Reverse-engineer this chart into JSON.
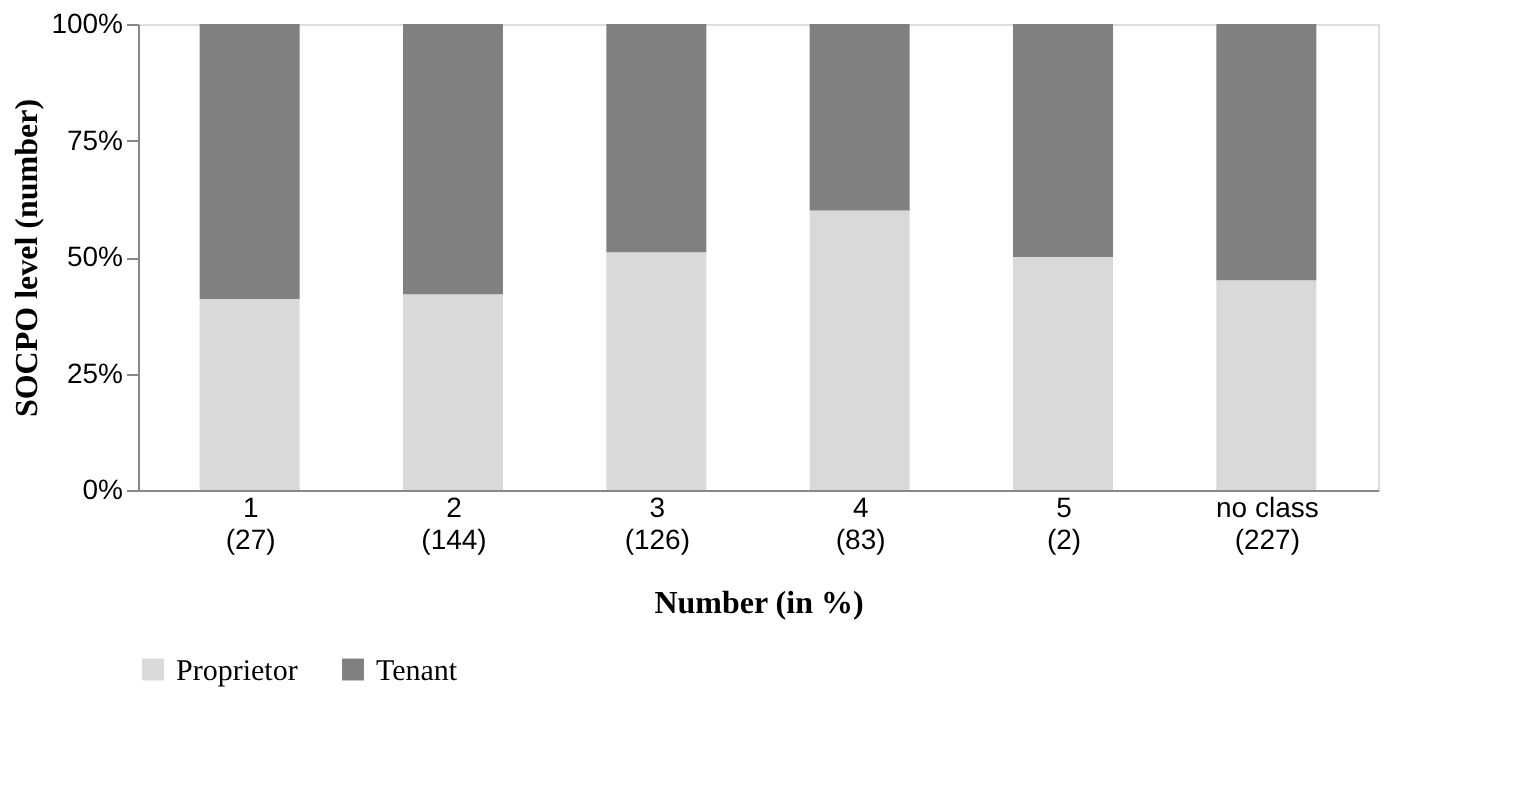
{
  "chart_data": {
    "type": "bar",
    "stacked": true,
    "xlabel": "Number (in %)",
    "ylabel": "SOCPO level (number)",
    "categories": [
      "1\n(27)",
      "2\n(144)",
      "3\n(126)",
      "4\n(83)",
      "5\n(2)",
      "no class\n(227)"
    ],
    "series": [
      {
        "name": "Proprietor",
        "color": "#d9d9d9",
        "values": [
          41,
          42,
          51,
          60,
          50,
          45
        ]
      },
      {
        "name": "Tenant",
        "color": "#808080",
        "values": [
          59,
          58,
          49,
          40,
          50,
          55
        ]
      }
    ],
    "ylim": [
      0,
      100
    ],
    "yticks": [
      {
        "value": 0,
        "label": "0%"
      },
      {
        "value": 25,
        "label": "25%"
      },
      {
        "value": 50,
        "label": "50%"
      },
      {
        "value": 75,
        "label": "75%"
      },
      {
        "value": 100,
        "label": "100%"
      }
    ],
    "grid": false,
    "legend": "bottom"
  }
}
